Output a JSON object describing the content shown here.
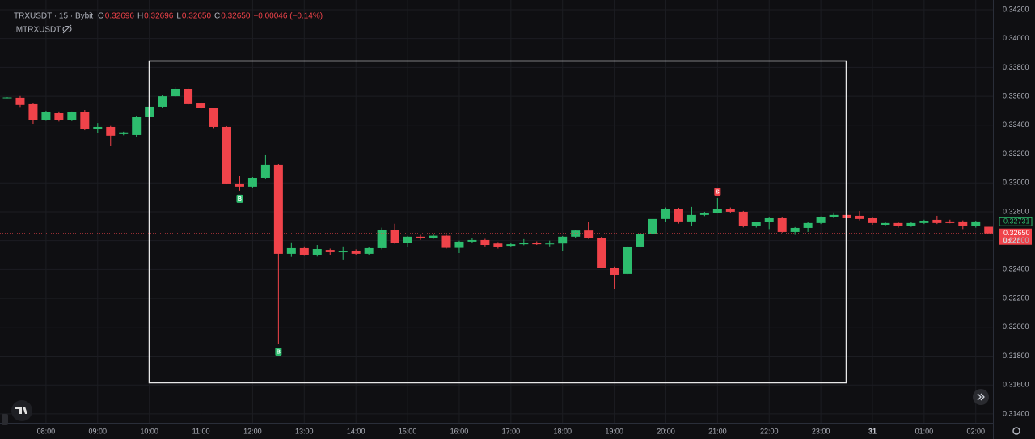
{
  "chart_data": {
    "type": "candlestick",
    "header": {
      "symbol": "TRXUSDT · 15 · Bybit",
      "ohlc": [
        {
          "label": "O",
          "value": "0.32696"
        },
        {
          "label": "H",
          "value": "0.32696"
        },
        {
          "label": "L",
          "value": "0.32650"
        },
        {
          "label": "C",
          "value": "0.32650"
        }
      ],
      "change": "−0.00046 (−0.14%)",
      "indicator_name": ".MTRXUSDT"
    },
    "categories": [
      null,
      null,
      null,
      "08:00",
      null,
      null,
      null,
      "09:00",
      null,
      null,
      null,
      "10:00",
      null,
      null,
      null,
      "11:00",
      null,
      null,
      null,
      "12:00",
      null,
      null,
      null,
      "13:00",
      null,
      null,
      null,
      "14:00",
      null,
      null,
      null,
      "15:00",
      null,
      null,
      null,
      "16:00",
      null,
      null,
      null,
      "17:00",
      null,
      null,
      null,
      "18:00",
      null,
      null,
      null,
      "19:00",
      null,
      null,
      null,
      "20:00",
      null,
      null,
      null,
      "21:00",
      null,
      null,
      null,
      "22:00",
      null,
      null,
      null,
      "23:00",
      null,
      null,
      null,
      "31",
      null,
      null,
      null,
      "01:00",
      null,
      null,
      null,
      "02:00",
      null
    ],
    "open": [
      0.3359,
      0.3359,
      0.33545,
      0.33438,
      0.33483,
      0.33433,
      0.33489,
      0.33375,
      0.33388,
      0.33338,
      0.33332,
      0.33455,
      0.33528,
      0.336,
      0.33651,
      0.3355,
      0.33517,
      0.33388,
      0.32996,
      0.32974,
      0.33035,
      0.33125,
      0.32509,
      0.32548,
      0.32503,
      0.32536,
      0.3252,
      0.32531,
      0.32509,
      0.32548,
      0.32672,
      0.32583,
      0.32627,
      0.32617,
      0.32634,
      0.3255,
      0.32593,
      0.32604,
      0.3258,
      0.32564,
      0.32575,
      0.32586,
      0.32575,
      0.3258,
      0.32627,
      0.3267,
      0.3262,
      0.32413,
      0.32369,
      0.32559,
      0.32643,
      0.3275,
      0.32822,
      0.32733,
      0.32778,
      0.32794,
      0.32822,
      0.328,
      0.32699,
      0.32727,
      0.32755,
      0.3266,
      0.32688,
      0.32722,
      0.32761,
      0.32778,
      0.32772,
      0.32755,
      0.3271,
      0.32722,
      0.32699,
      0.32722,
      0.32744,
      0.32733,
      0.32733,
      0.32699,
      0.32696
    ],
    "high": [
      0.33594,
      0.33602,
      0.3355,
      0.335,
      0.33495,
      0.33495,
      0.33505,
      0.33415,
      0.33395,
      0.33355,
      0.33462,
      0.33535,
      0.3361,
      0.33662,
      0.3366,
      0.33558,
      0.33522,
      0.33392,
      0.33046,
      0.3304,
      0.33192,
      0.3313,
      0.32588,
      0.3256,
      0.3257,
      0.32545,
      0.3256,
      0.3254,
      0.32555,
      0.3269,
      0.32717,
      0.32632,
      0.3264,
      0.32645,
      0.3264,
      0.326,
      0.3262,
      0.32612,
      0.3259,
      0.32582,
      0.3261,
      0.32595,
      0.326,
      0.32632,
      0.32675,
      0.32727,
      0.32625,
      0.3242,
      0.32565,
      0.32648,
      0.32766,
      0.3283,
      0.32828,
      0.32834,
      0.328,
      0.32895,
      0.3283,
      0.32806,
      0.32732,
      0.3276,
      0.32765,
      0.32694,
      0.32728,
      0.32768,
      0.32795,
      0.32785,
      0.32805,
      0.3276,
      0.32727,
      0.3273,
      0.3273,
      0.32745,
      0.32772,
      0.32745,
      0.3274,
      0.32738,
      0.32696
    ],
    "low": [
      0.33586,
      0.33526,
      0.3341,
      0.3343,
      0.33425,
      0.33428,
      0.33365,
      0.33345,
      0.33259,
      0.3333,
      0.33315,
      0.33445,
      0.3352,
      0.33595,
      0.3354,
      0.3351,
      0.3338,
      0.3299,
      0.32946,
      0.32968,
      0.3303,
      0.31887,
      0.32488,
      0.32495,
      0.3249,
      0.325,
      0.3247,
      0.325,
      0.325,
      0.3254,
      0.32578,
      0.32555,
      0.32605,
      0.32612,
      0.32545,
      0.32514,
      0.32585,
      0.3256,
      0.32545,
      0.32555,
      0.32568,
      0.3257,
      0.3256,
      0.3253,
      0.3262,
      0.32612,
      0.32408,
      0.32262,
      0.32362,
      0.3254,
      0.32638,
      0.3273,
      0.32718,
      0.327,
      0.3277,
      0.32788,
      0.3279,
      0.32692,
      0.3269,
      0.3268,
      0.32655,
      0.3264,
      0.3266,
      0.32715,
      0.32755,
      0.32745,
      0.3274,
      0.3271,
      0.327,
      0.3269,
      0.32695,
      0.32715,
      0.32715,
      0.3272,
      0.3268,
      0.3269,
      0.3265
    ],
    "close": [
      0.33592,
      0.3354,
      0.33438,
      0.3349,
      0.33433,
      0.33489,
      0.33371,
      0.33388,
      0.33327,
      0.3335,
      0.33455,
      0.33528,
      0.336,
      0.33651,
      0.33545,
      0.33517,
      0.33388,
      0.32996,
      0.32974,
      0.33035,
      0.33125,
      0.32509,
      0.32548,
      0.32503,
      0.32542,
      0.3252,
      0.32525,
      0.32509,
      0.32548,
      0.32672,
      0.32583,
      0.32627,
      0.32617,
      0.32634,
      0.3255,
      0.32593,
      0.32604,
      0.3257,
      0.32559,
      0.32575,
      0.32586,
      0.32575,
      0.3258,
      0.32627,
      0.3267,
      0.3262,
      0.32413,
      0.32363,
      0.32559,
      0.32643,
      0.3275,
      0.32822,
      0.32733,
      0.32778,
      0.32794,
      0.32822,
      0.328,
      0.32699,
      0.32727,
      0.32755,
      0.3266,
      0.32688,
      0.32722,
      0.32761,
      0.32778,
      0.32755,
      0.3275,
      0.32722,
      0.32722,
      0.32699,
      0.32722,
      0.32738,
      0.32722,
      0.32722,
      0.32699,
      0.32733,
      0.3265
    ],
    "up_color": "#2dbd6e",
    "down_color": "#f0434a",
    "ylim": [
      0.31338,
      0.34267
    ],
    "yticks": [
      {
        "value": 0.314,
        "label": "0.31400"
      },
      {
        "value": 0.316,
        "label": "0.31600"
      },
      {
        "value": 0.318,
        "label": "0.31800"
      },
      {
        "value": 0.32,
        "label": "0.32000"
      },
      {
        "value": 0.322,
        "label": "0.32200"
      },
      {
        "value": 0.324,
        "label": "0.32400"
      },
      {
        "value": 0.326,
        "label": "0.32600"
      },
      {
        "value": 0.328,
        "label": "0.32800"
      },
      {
        "value": 0.33,
        "label": "0.33000"
      },
      {
        "value": 0.332,
        "label": "0.33200"
      },
      {
        "value": 0.334,
        "label": "0.33400"
      },
      {
        "value": 0.336,
        "label": "0.33600"
      },
      {
        "value": 0.338,
        "label": "0.33800"
      },
      {
        "value": 0.34,
        "label": "0.34000"
      },
      {
        "value": 0.342,
        "label": "0.34200"
      }
    ],
    "grid": true,
    "indicator_value": 0.32731,
    "last_price_label": "0.32650",
    "countdown": "08:27",
    "signals": [
      {
        "text": "B",
        "candle": 18,
        "side": "below"
      },
      {
        "text": "B",
        "candle": 21,
        "side": "below"
      },
      {
        "text": "S",
        "candle": 55,
        "side": "above"
      }
    ]
  }
}
